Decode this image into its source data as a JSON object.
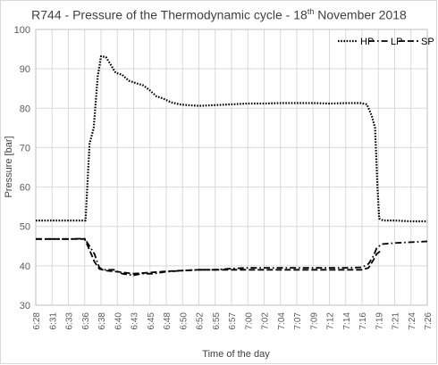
{
  "chart_data": {
    "type": "line",
    "title_pre": "R744 - Pressure of the Thermodynamic cycle - 18",
    "title_sup": "th",
    "title_post": " November 2018",
    "xlabel": "Time of the day",
    "ylabel": "Pressure [bar]",
    "ylim": [
      30,
      100
    ],
    "yticks": [
      30,
      40,
      50,
      60,
      70,
      80,
      90,
      100
    ],
    "x_tick_labels": [
      "6:28",
      "6:31",
      "6:33",
      "6:36",
      "6:38",
      "6:40",
      "6:43",
      "6:45",
      "6:48",
      "6:50",
      "6:52",
      "6:55",
      "6:57",
      "7:00",
      "7:02",
      "7:04",
      "7:07",
      "7:09",
      "7:12",
      "7:14",
      "7:16",
      "7:19",
      "7:21",
      "7:24",
      "7:26"
    ],
    "grid": true,
    "legend_position": "top-right",
    "series": [
      {
        "name": "HP",
        "dash": "dotted",
        "points": [
          [
            0,
            51.5
          ],
          [
            1,
            51.5
          ],
          [
            2,
            51.5
          ],
          [
            2.8,
            51.5
          ],
          [
            3.05,
            51.5
          ],
          [
            3.3,
            71
          ],
          [
            3.55,
            75
          ],
          [
            3.8,
            88
          ],
          [
            4.0,
            93.2
          ],
          [
            4.3,
            93
          ],
          [
            4.6,
            91
          ],
          [
            4.9,
            89
          ],
          [
            5.3,
            88.5
          ],
          [
            5.7,
            87
          ],
          [
            6.2,
            86.3
          ],
          [
            6.6,
            85.8
          ],
          [
            7.0,
            84.5
          ],
          [
            7.4,
            83
          ],
          [
            7.8,
            82.5
          ],
          [
            8.3,
            81.5
          ],
          [
            8.8,
            81
          ],
          [
            9.3,
            80.8
          ],
          [
            10,
            80.6
          ],
          [
            11,
            80.8
          ],
          [
            12,
            81
          ],
          [
            13,
            81.2
          ],
          [
            14,
            81.2
          ],
          [
            15,
            81.3
          ],
          [
            16,
            81.3
          ],
          [
            17,
            81.3
          ],
          [
            18,
            81.2
          ],
          [
            19,
            81.3
          ],
          [
            19.9,
            81.3
          ],
          [
            20.3,
            81
          ],
          [
            20.6,
            78
          ],
          [
            20.8,
            75
          ],
          [
            20.95,
            60
          ],
          [
            21.05,
            52
          ],
          [
            21.3,
            51.5
          ],
          [
            22,
            51.5
          ],
          [
            23,
            51.3
          ],
          [
            24,
            51.3
          ]
        ]
      },
      {
        "name": "LP",
        "dash": "dashdot",
        "points": [
          [
            0,
            46.8
          ],
          [
            1,
            46.8
          ],
          [
            2,
            46.8
          ],
          [
            3.0,
            46.9
          ],
          [
            3.3,
            45
          ],
          [
            3.6,
            43
          ],
          [
            3.9,
            39.5
          ],
          [
            4.2,
            39
          ],
          [
            4.8,
            39
          ],
          [
            5.3,
            38
          ],
          [
            6.0,
            37.6
          ],
          [
            6.5,
            38
          ],
          [
            7.2,
            38
          ],
          [
            8.0,
            38.5
          ],
          [
            9.0,
            38.8
          ],
          [
            10,
            39
          ],
          [
            11,
            39
          ],
          [
            12,
            39.3
          ],
          [
            13,
            39.5
          ],
          [
            14,
            39.5
          ],
          [
            15,
            39.5
          ],
          [
            16,
            39.5
          ],
          [
            17,
            39.5
          ],
          [
            18,
            39.5
          ],
          [
            19,
            39.5
          ],
          [
            20,
            39.6
          ],
          [
            20.4,
            40.5
          ],
          [
            20.7,
            42.5
          ],
          [
            20.9,
            44.5
          ],
          [
            21.2,
            45.5
          ],
          [
            22,
            45.8
          ],
          [
            23,
            46
          ],
          [
            24,
            46.2
          ]
        ]
      },
      {
        "name": "SP",
        "dash": "dashed",
        "points": [
          [
            0,
            46.8
          ],
          [
            2,
            46.8
          ],
          [
            3.0,
            46.8
          ],
          [
            3.3,
            44
          ],
          [
            3.6,
            41
          ],
          [
            3.9,
            39.2
          ],
          [
            4.3,
            38.8
          ],
          [
            5.0,
            38.5
          ],
          [
            6.0,
            38
          ],
          [
            7.0,
            38.3
          ],
          [
            8.0,
            38.6
          ],
          [
            9.0,
            38.8
          ],
          [
            10,
            39
          ],
          [
            11,
            39
          ],
          [
            12,
            39
          ],
          [
            13,
            39
          ],
          [
            14,
            39
          ],
          [
            15,
            39
          ],
          [
            16,
            39
          ],
          [
            17,
            39
          ],
          [
            18,
            39
          ],
          [
            19,
            39
          ],
          [
            20,
            39
          ],
          [
            20.4,
            39.5
          ],
          [
            20.7,
            41.5
          ],
          [
            20.9,
            43
          ],
          [
            21.2,
            44
          ]
        ]
      }
    ]
  }
}
